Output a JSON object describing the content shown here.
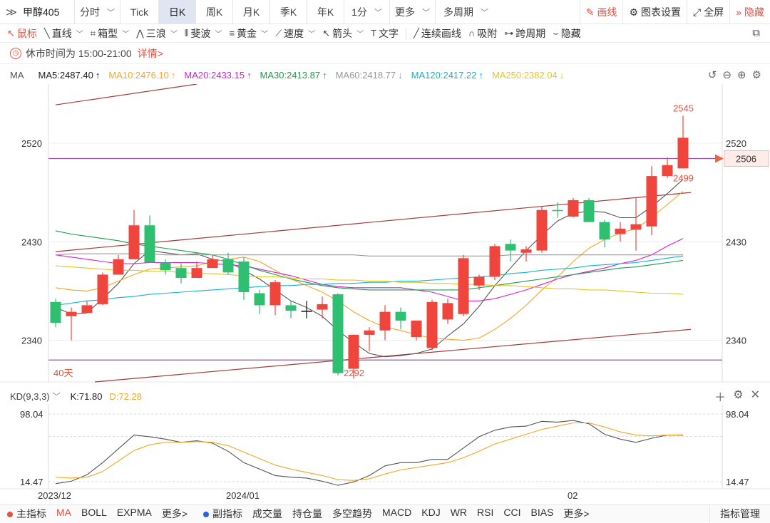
{
  "toolbar": {
    "symbol": "甲醇405",
    "tabs": [
      {
        "label": "分时",
        "chevron": true
      },
      {
        "label": "Tick",
        "chevron": false
      },
      {
        "label": "日K",
        "chevron": false,
        "active": true
      },
      {
        "label": "周K",
        "chevron": false
      },
      {
        "label": "月K",
        "chevron": false
      },
      {
        "label": "季K",
        "chevron": false
      },
      {
        "label": "年K",
        "chevron": false
      },
      {
        "label": "1分",
        "chevron": true
      },
      {
        "label": "更多",
        "chevron": true
      },
      {
        "label": "多周期",
        "chevron": true
      }
    ],
    "draw_label": "画线",
    "settings_label": "图表设置",
    "fullscreen_label": "全屏",
    "hide_label": "隐藏"
  },
  "drawing_tools": [
    {
      "label": "鼠标",
      "icon": "cursor-icon",
      "glyph": "↖",
      "chevron": false,
      "active": true
    },
    {
      "label": "直线",
      "icon": "line-icon",
      "glyph": "╲",
      "chevron": true
    },
    {
      "label": "箱型",
      "icon": "box-icon",
      "glyph": "⌗",
      "chevron": true
    },
    {
      "label": "三浪",
      "icon": "wave-icon",
      "glyph": "⋀",
      "chevron": true
    },
    {
      "label": "斐波",
      "icon": "fibonacci-icon",
      "glyph": "⦀",
      "chevron": true
    },
    {
      "label": "黄金",
      "icon": "gold-icon",
      "glyph": "≡",
      "chevron": true
    },
    {
      "label": "速度",
      "icon": "speed-icon",
      "glyph": "⟋",
      "chevron": true
    },
    {
      "label": "箭头",
      "icon": "arrow-icon",
      "glyph": "↖",
      "chevron": true
    },
    {
      "label": "文字",
      "icon": "text-icon",
      "glyph": "T",
      "chevron": false
    },
    {
      "label": "连续画线",
      "icon": "continuous-line-icon",
      "glyph": "╱",
      "chevron": false,
      "sep_before": true
    },
    {
      "label": "吸附",
      "icon": "magnet-icon",
      "glyph": "∩",
      "chevron": false
    },
    {
      "label": "跨周期",
      "icon": "cross-period-icon",
      "glyph": "⊶",
      "chevron": false
    },
    {
      "label": "隐藏",
      "icon": "hide-eye-icon",
      "glyph": "⌣",
      "chevron": false
    }
  ],
  "notice": {
    "text": "休市时间为 15:00-21:00",
    "link": "详情>"
  },
  "ma_bar": {
    "label": "MA",
    "items": [
      {
        "text": "MA5:2487.40",
        "arrow": "↑",
        "color": "#222222"
      },
      {
        "text": "MA10:2476.10",
        "arrow": "↑",
        "color": "#f5a623"
      },
      {
        "text": "MA20:2433.15",
        "arrow": "↑",
        "color": "#d81ed6"
      },
      {
        "text": "MA30:2413.87",
        "arrow": "↑",
        "color": "#1a9e4b"
      },
      {
        "text": "MA60:2418.77",
        "arrow": "↓",
        "color": "#999999"
      },
      {
        "text": "MA120:2417.22",
        "arrow": "↑",
        "color": "#12b5cb"
      },
      {
        "text": "MA250:2382.04",
        "arrow": "↓",
        "color": "#e6c619"
      }
    ]
  },
  "kd_bar": {
    "label": "KD(9,3,3)",
    "k_text": "K:71.80",
    "d_text": "D:72.28"
  },
  "bottom": {
    "main_indicator_label": "主指标",
    "main_items": [
      "MA",
      "BOLL",
      "EXPMA",
      "更多>"
    ],
    "sub_indicator_label": "副指标",
    "sub_items": [
      "成交量",
      "持仓量",
      "多空趋势",
      "MACD",
      "KDJ",
      "WR",
      "RSI",
      "CCI",
      "BIAS",
      "更多>"
    ],
    "manage_label": "指标管理"
  },
  "chart_data": {
    "type": "candlestick",
    "ylim": [
      2302,
      2574
    ],
    "y_ticks": [
      2340,
      2430,
      2520
    ],
    "candles": [
      [
        2375,
        2356,
        2378,
        2352
      ],
      [
        2362,
        2366,
        2370,
        2340
      ],
      [
        2365,
        2372,
        2376,
        2365
      ],
      [
        2373,
        2400,
        2402,
        2372
      ],
      [
        2400,
        2414,
        2418,
        2400
      ],
      [
        2414,
        2445,
        2459,
        2414
      ],
      [
        2445,
        2411,
        2454,
        2411
      ],
      [
        2411,
        2404,
        2414,
        2400
      ],
      [
        2406,
        2397,
        2411,
        2392
      ],
      [
        2397,
        2406,
        2412,
        2397
      ],
      [
        2406,
        2414,
        2418,
        2406
      ],
      [
        2414,
        2402,
        2420,
        2400
      ],
      [
        2412,
        2384,
        2416,
        2377
      ],
      [
        2383,
        2372,
        2386,
        2364
      ],
      [
        2372,
        2393,
        2395,
        2363
      ],
      [
        2372,
        2367,
        2376,
        2360
      ],
      [
        2367,
        2367,
        2376,
        2360
      ],
      [
        2368,
        2373,
        2380,
        2360
      ],
      [
        2382,
        2310,
        2383,
        2308
      ],
      [
        2314,
        2345,
        2345,
        2305
      ],
      [
        2345,
        2349,
        2352,
        2330
      ],
      [
        2349,
        2366,
        2372,
        2340
      ],
      [
        2366,
        2358,
        2370,
        2350
      ],
      [
        2343,
        2358,
        2358,
        2340
      ],
      [
        2333,
        2375,
        2377,
        2331
      ],
      [
        2359,
        2374,
        2378,
        2355
      ],
      [
        2364,
        2415,
        2418,
        2362
      ],
      [
        2390,
        2398,
        2400,
        2386
      ],
      [
        2398,
        2426,
        2428,
        2395
      ],
      [
        2428,
        2422,
        2432,
        2412
      ],
      [
        2420,
        2423,
        2426,
        2412
      ],
      [
        2422,
        2459,
        2462,
        2420
      ],
      [
        2459,
        2458,
        2466,
        2452
      ],
      [
        2453,
        2468,
        2470,
        2452
      ],
      [
        2468,
        2448,
        2470,
        2448
      ],
      [
        2448,
        2432,
        2450,
        2425
      ],
      [
        2437,
        2442,
        2448,
        2430
      ],
      [
        2441,
        2446,
        2470,
        2422
      ],
      [
        2444,
        2490,
        2499,
        2436
      ],
      [
        2490,
        2500,
        2507,
        2488
      ],
      [
        2497,
        2525,
        2545,
        2497
      ]
    ],
    "annotations": [
      {
        "text": "2499",
        "value": 2499,
        "color": "#e8503f"
      },
      {
        "text": "2292",
        "value": 2292,
        "color": "#e8503f"
      },
      {
        "text": "2545",
        "value": 2545,
        "color": "#e8503f"
      },
      {
        "text": "40天",
        "color": "#e8503f"
      }
    ],
    "current_price": {
      "text": "2506",
      "value": 2506
    },
    "horizontal_lines": [
      {
        "value": 2506,
        "color": "#9b4ea6"
      },
      {
        "value": 2322,
        "color": "#9b4ea6"
      }
    ],
    "trend_lines": [
      {
        "from": [
          0,
          2421
        ],
        "to": [
          40.5,
          2475
        ],
        "color": "#a83a3a"
      },
      {
        "from": [
          2.5,
          2302
        ],
        "to": [
          40.5,
          2350
        ],
        "color": "#a83a3a"
      },
      {
        "from": [
          0,
          2555
        ],
        "to": [
          9,
          2574
        ],
        "color": "#a83a3a"
      }
    ],
    "ma_series": [
      {
        "name": "MA5",
        "color": "#555555",
        "values": [
          2370,
          2364,
          2365,
          2378,
          2392,
          2410,
          2422,
          2420,
          2418,
          2419,
          2414,
          2412,
          2404,
          2396,
          2386,
          2376,
          2370,
          2362,
          2349,
          2338,
          2328,
          2325,
          2326,
          2328,
          2332,
          2344,
          2355,
          2371,
          2390,
          2406,
          2422,
          2436,
          2449,
          2456,
          2458,
          2457,
          2452,
          2452,
          2462,
          2474,
          2487
        ]
      },
      {
        "name": "MA10",
        "color": "#f5a623",
        "values": [
          2388,
          2386,
          2385,
          2388,
          2394,
          2400,
          2405,
          2406,
          2407,
          2408,
          2412,
          2414,
          2416,
          2412,
          2404,
          2396,
          2390,
          2384,
          2376,
          2366,
          2358,
          2352,
          2349,
          2345,
          2342,
          2341,
          2340,
          2342,
          2350,
          2360,
          2372,
          2386,
          2398,
          2412,
          2424,
          2432,
          2438,
          2442,
          2452,
          2464,
          2476
        ]
      },
      {
        "name": "MA20",
        "color": "#d81ed6",
        "values": [
          2418,
          2416,
          2414,
          2412,
          2410,
          2410,
          2411,
          2411,
          2411,
          2411,
          2410,
          2409,
          2408,
          2405,
          2402,
          2399,
          2395,
          2391,
          2389,
          2388,
          2388,
          2388,
          2388,
          2386,
          2384,
          2380,
          2376,
          2376,
          2378,
          2382,
          2386,
          2391,
          2396,
          2400,
          2403,
          2406,
          2410,
          2413,
          2418,
          2426,
          2433
        ]
      },
      {
        "name": "MA30",
        "color": "#1a9e4b",
        "values": [
          2440,
          2437,
          2435,
          2433,
          2431,
          2428,
          2426,
          2424,
          2422,
          2420,
          2418,
          2414,
          2409,
          2404,
          2400,
          2396,
          2393,
          2390,
          2388,
          2387,
          2386,
          2386,
          2386,
          2386,
          2386,
          2386,
          2386,
          2388,
          2390,
          2392,
          2394,
          2396,
          2398,
          2400,
          2402,
          2404,
          2406,
          2407,
          2409,
          2411,
          2413
        ]
      },
      {
        "name": "MA60",
        "color": "#999999",
        "values": [
          2418,
          2419,
          2419,
          2419,
          2419,
          2419,
          2419,
          2418,
          2418,
          2418,
          2418,
          2418,
          2418,
          2418,
          2418,
          2418,
          2418,
          2418,
          2418,
          2418,
          2417,
          2417,
          2417,
          2417,
          2417,
          2417,
          2417,
          2417,
          2417,
          2418,
          2418,
          2418,
          2418,
          2418,
          2418,
          2418,
          2418,
          2418,
          2418,
          2418,
          2418
        ]
      },
      {
        "name": "MA120",
        "color": "#12b5cb",
        "values": [
          2372,
          2374,
          2376,
          2377,
          2379,
          2380,
          2382,
          2383,
          2384,
          2385,
          2386,
          2387,
          2388,
          2389,
          2390,
          2390,
          2391,
          2391,
          2392,
          2392,
          2393,
          2393,
          2394,
          2394,
          2395,
          2396,
          2397,
          2398,
          2399,
          2401,
          2402,
          2404,
          2405,
          2406,
          2408,
          2409,
          2410,
          2411,
          2413,
          2415,
          2417
        ]
      },
      {
        "name": "MA250",
        "color": "#e6c619",
        "values": [
          2408,
          2407,
          2406,
          2405,
          2404,
          2404,
          2403,
          2403,
          2402,
          2401,
          2401,
          2400,
          2399,
          2398,
          2398,
          2397,
          2396,
          2396,
          2395,
          2395,
          2394,
          2394,
          2393,
          2393,
          2392,
          2392,
          2391,
          2391,
          2390,
          2390,
          2389,
          2388,
          2387,
          2387,
          2386,
          2386,
          2385,
          2384,
          2383,
          2383,
          2382
        ]
      }
    ],
    "kd": {
      "ylim": [
        14.47,
        98.04
      ],
      "y_ticks": [
        14.47,
        98.04
      ],
      "x_labels": [
        {
          "index": 0,
          "text": "2023/12"
        },
        {
          "index": 12,
          "text": "2024/01"
        },
        {
          "index": 33,
          "text": "02"
        }
      ],
      "k": [
        12.0,
        15.0,
        23.0,
        38.0,
        55.0,
        72.0,
        70.0,
        67.0,
        63.0,
        65.0,
        62.0,
        52.0,
        38.0,
        30.0,
        22.0,
        20.0,
        19.0,
        15.0,
        10.0,
        14.0,
        22.0,
        34.0,
        38.0,
        38.0,
        42.0,
        42.0,
        56.0,
        70.0,
        78.0,
        82.0,
        83.0,
        89.0,
        88.0,
        90.0,
        86.0,
        73.0,
        67.0,
        63.0,
        68.0,
        72.0,
        71.8
      ],
      "d": [
        20.0,
        19.0,
        20.0,
        27.0,
        40.0,
        53.0,
        60.0,
        63.0,
        63.0,
        64.0,
        63.0,
        59.0,
        51.0,
        43.0,
        35.0,
        30.0,
        26.0,
        22.0,
        17.0,
        16.0,
        18.0,
        24.0,
        29.0,
        32.0,
        35.0,
        38.0,
        44.0,
        52.0,
        61.0,
        67.0,
        73.0,
        79.0,
        83.0,
        87.0,
        87.0,
        82.0,
        76.0,
        72.0,
        71.0,
        72.0,
        72.28
      ]
    }
  }
}
